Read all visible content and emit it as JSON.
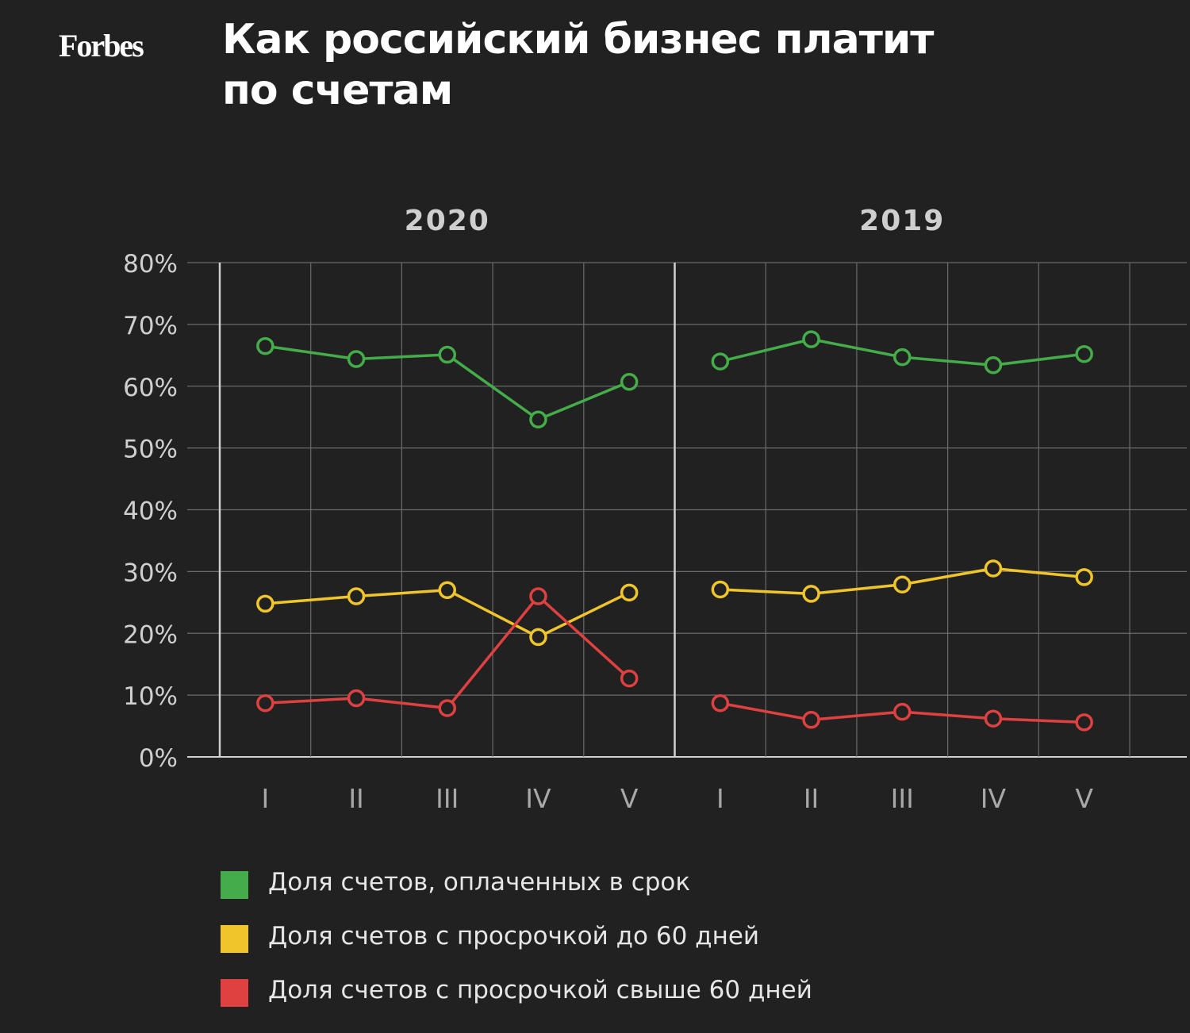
{
  "logo": "Forbes",
  "title": "Как российский бизнес платит по счетам",
  "colors": {
    "background": "#212121",
    "grid": "#6a6a6a",
    "axis": "#d0d0d0",
    "green": "#45ac4a",
    "yellow": "#f0c52c",
    "red": "#df4040"
  },
  "chart_data": {
    "type": "line",
    "title": "Как российский бизнес платит по счетам",
    "xlabel": "",
    "ylabel": "",
    "ylim": [
      0,
      80
    ],
    "y_ticks": [
      "0%",
      "10%",
      "20%",
      "30%",
      "40%",
      "50%",
      "60%",
      "70%",
      "80%"
    ],
    "grid": true,
    "legend_position": "bottom",
    "panels": [
      {
        "label": "2020",
        "categories": [
          "I",
          "II",
          "III",
          "IV",
          "V"
        ],
        "series": [
          {
            "name": "Доля счетов, оплаченных в срок",
            "color": "#45ac4a",
            "values": [
              66.5,
              64.4,
              65.1,
              54.6,
              60.7
            ]
          },
          {
            "name": "Доля счетов с просрочкой до 60 дней",
            "color": "#f0c52c",
            "values": [
              24.8,
              26.0,
              27.0,
              19.4,
              26.6
            ]
          },
          {
            "name": "Доля счетов с просрочкой свыше 60 дней",
            "color": "#df4040",
            "values": [
              8.7,
              9.5,
              7.9,
              26.0,
              12.7
            ]
          }
        ]
      },
      {
        "label": "2019",
        "categories": [
          "I",
          "II",
          "III",
          "IV",
          "V"
        ],
        "series": [
          {
            "name": "Доля счетов, оплаченных в срок",
            "color": "#45ac4a",
            "values": [
              64.0,
              67.6,
              64.7,
              63.4,
              65.2
            ]
          },
          {
            "name": "Доля счетов с просрочкой до 60 дней",
            "color": "#f0c52c",
            "values": [
              27.1,
              26.4,
              27.9,
              30.5,
              29.1
            ]
          },
          {
            "name": "Доля счетов с просрочкой свыше 60 дней",
            "color": "#df4040",
            "values": [
              8.7,
              6.0,
              7.3,
              6.2,
              5.6
            ]
          }
        ]
      }
    ]
  },
  "legend": {
    "items": [
      {
        "label": "Доля счетов, оплаченных в срок",
        "color": "#45ac4a"
      },
      {
        "label": "Доля счетов с просрочкой до 60 дней",
        "color": "#f0c52c"
      },
      {
        "label": "Доля счетов с просрочкой свыше 60 дней",
        "color": "#df4040"
      }
    ]
  }
}
